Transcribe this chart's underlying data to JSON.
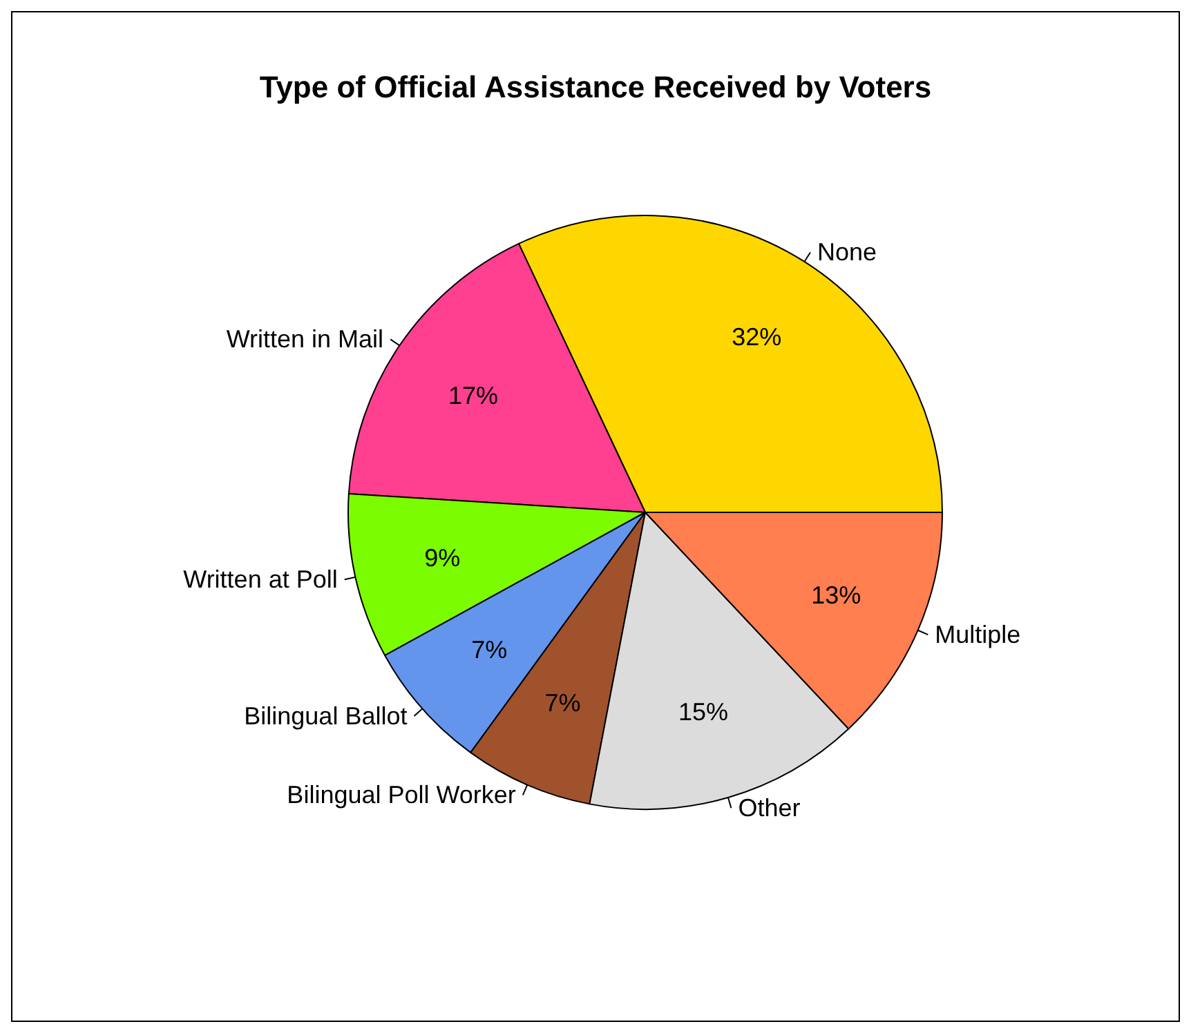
{
  "chart_data": {
    "type": "pie",
    "title": "Type of Official Assistance Received by Voters",
    "categories": [
      "None",
      "Written in Mail",
      "Written at Poll",
      "Bilingual Ballot",
      "Bilingual Poll Worker",
      "Other",
      "Multiple"
    ],
    "values": [
      32,
      17,
      9,
      7,
      7,
      15,
      13
    ],
    "colors": [
      "#ffd700",
      "#ff3f8f",
      "#7cfc00",
      "#6495ed",
      "#a0522d",
      "#dcdcdc",
      "#ff7f50"
    ],
    "value_labels": [
      "32%",
      "17%",
      "9%",
      "7%",
      "7%",
      "15%",
      "13%"
    ]
  }
}
